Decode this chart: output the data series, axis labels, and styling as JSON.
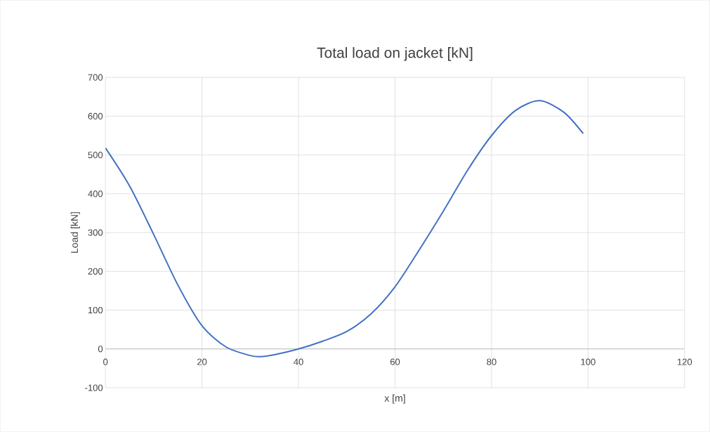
{
  "chart_data": {
    "type": "line",
    "title": "Total load on jacket [kN]",
    "xlabel": "x [m]",
    "ylabel": "Load [kN]",
    "x": [
      0,
      5,
      10,
      15,
      20,
      25,
      30,
      32,
      35,
      40,
      45,
      50,
      55,
      60,
      65,
      70,
      75,
      80,
      85,
      90,
      95,
      99
    ],
    "series": [
      {
        "color": "#4472c4",
        "values": [
          518,
          420,
          295,
          165,
          60,
          5,
          -17,
          -20,
          -15,
          0,
          20,
          45,
          90,
          160,
          255,
          355,
          460,
          550,
          615,
          640,
          610,
          555
        ]
      }
    ],
    "xlim": [
      0,
      120
    ],
    "xticks": [
      0,
      20,
      40,
      60,
      80,
      100,
      120
    ],
    "ylim": [
      -100,
      700
    ],
    "yticks": [
      -100,
      0,
      100,
      200,
      300,
      400,
      500,
      600,
      700
    ],
    "grid": true,
    "marker": "none",
    "line_style": "solid"
  }
}
